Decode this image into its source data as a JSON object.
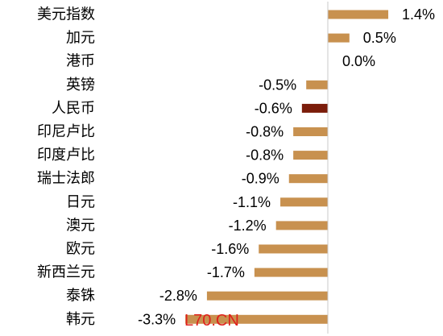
{
  "chart_data": {
    "type": "bar",
    "orientation": "horizontal",
    "categories": [
      "美元指数",
      "加元",
      "港币",
      "英镑",
      "人民币",
      "印尼卢比",
      "印度卢比",
      "瑞士法郎",
      "日元",
      "澳元",
      "欧元",
      "新西兰元",
      "泰铢",
      "韩元"
    ],
    "values": [
      1.4,
      0.5,
      0.0,
      -0.5,
      -0.6,
      -0.8,
      -0.8,
      -0.9,
      -1.1,
      -1.2,
      -1.6,
      -1.7,
      -2.8,
      -3.3
    ],
    "value_labels": [
      "1.4%",
      "0.5%",
      "0.0%",
      "-0.5%",
      "-0.6%",
      "-0.8%",
      "-0.8%",
      "-0.9%",
      "-1.1%",
      "-1.2%",
      "-1.6%",
      "-1.7%",
      "-2.8%",
      "-3.3%"
    ],
    "unit": "%",
    "xlim": [
      -3.3,
      1.4
    ],
    "grid": false,
    "legend": "none",
    "bar_color": "#c8914f",
    "highlight_color": "#7b1c0a",
    "highlight_category": "人民币",
    "axis_color": "#c8c8c8"
  },
  "watermark": {
    "text": "L70.CN",
    "color": "#e0201b"
  }
}
